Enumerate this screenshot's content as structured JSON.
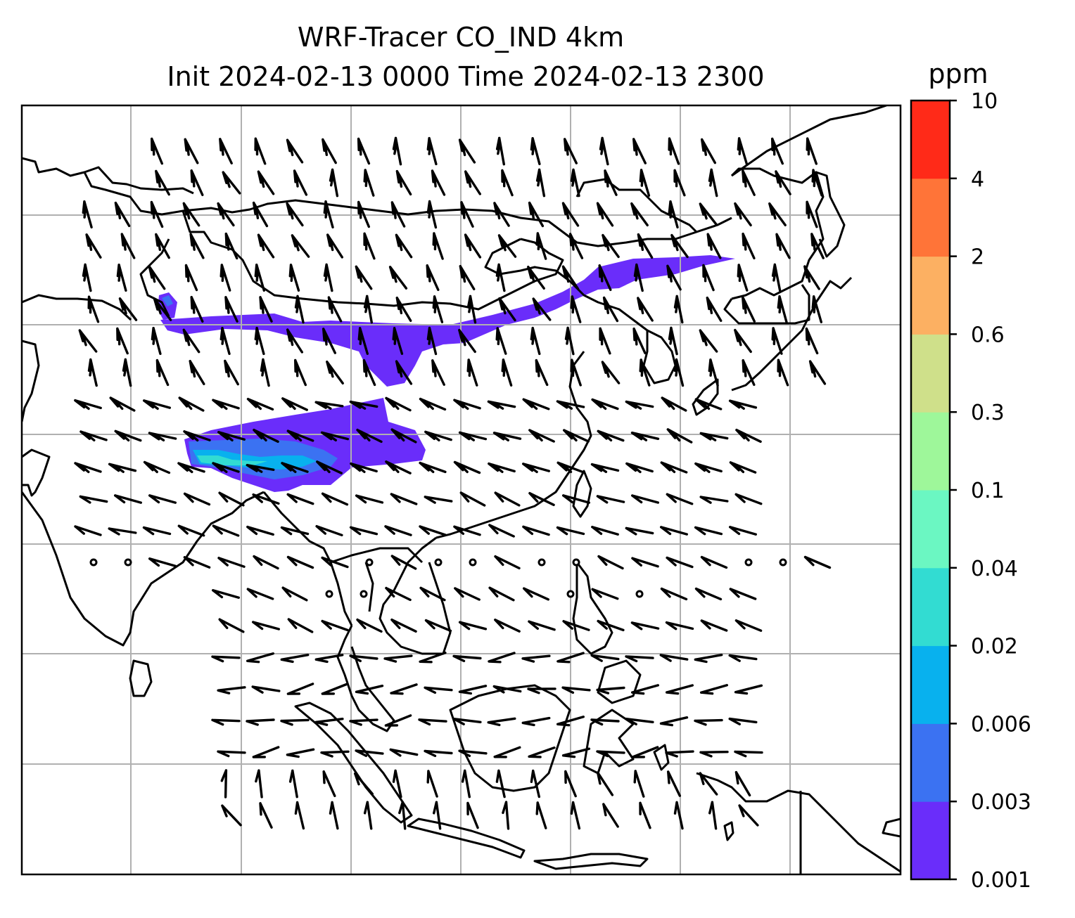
{
  "title_line1": "WRF-Tracer CO_IND 4km",
  "title_line2": "Init 2024-02-13 0000 Time 2024-02-13 2300",
  "colorbar": {
    "unit": "ppm",
    "ticks": [
      "0.001",
      "0.003",
      "0.006",
      "0.02",
      "0.04",
      "0.1",
      "0.3",
      "0.6",
      "2",
      "4",
      "10"
    ],
    "colors": [
      "#6a2dfa",
      "#3b72f2",
      "#08b1ee",
      "#32dcd2",
      "#6bf7c2",
      "#9ef79a",
      "#cfe08a",
      "#fcb062",
      "#ff7438",
      "#ff2a18"
    ]
  },
  "map": {
    "gridlines": "on",
    "coastline_color": "#000000",
    "gridline_color": "#b0b0b0",
    "barb_color": "#000000"
  }
}
